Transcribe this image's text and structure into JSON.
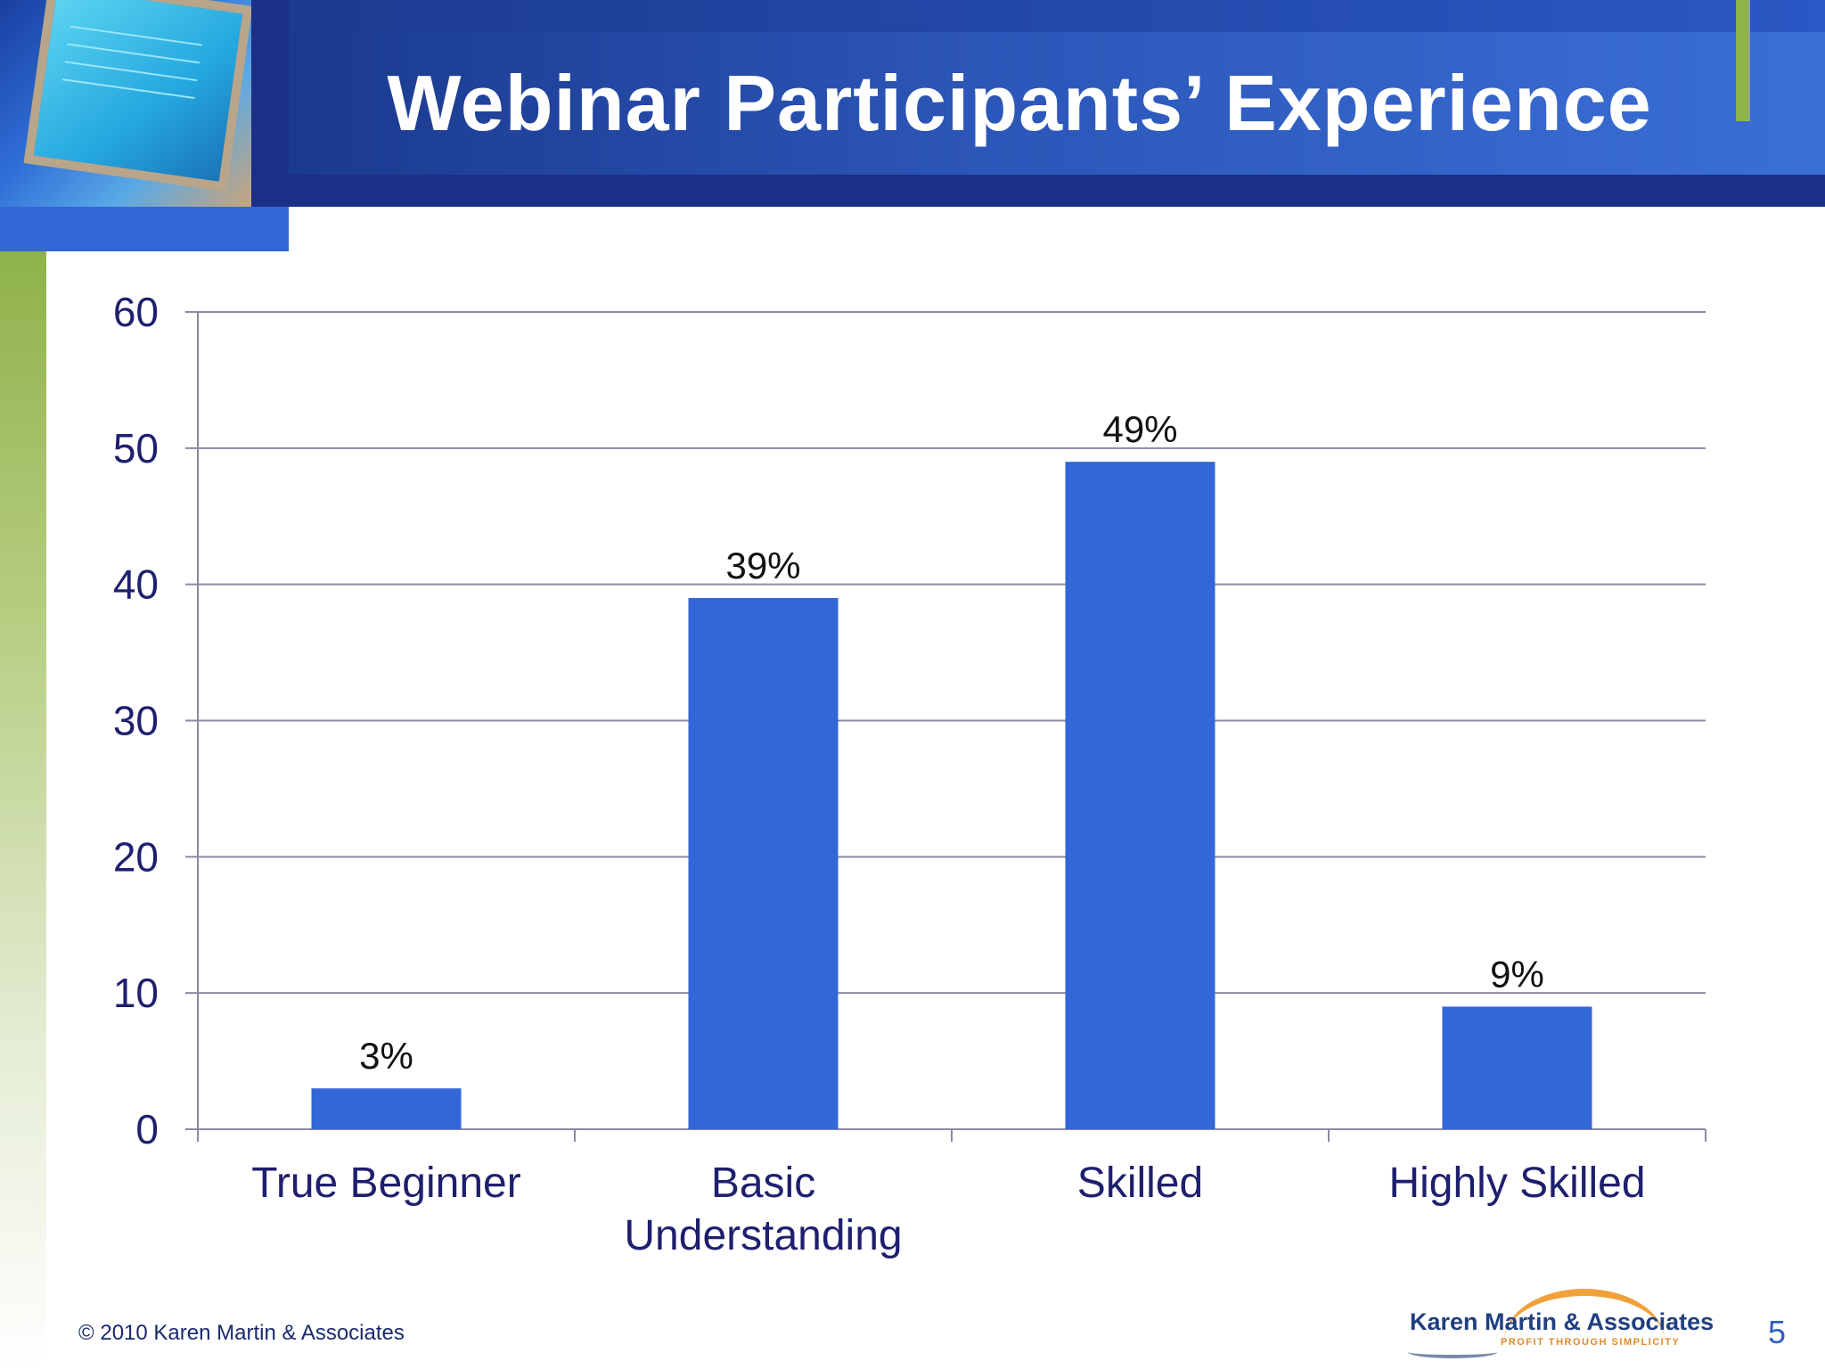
{
  "slide": {
    "title": "Webinar Participants’ Experience",
    "footer_text": "© 2010 Karen Martin & Associates",
    "logo_name": "Karen Martin & Associates",
    "logo_tagline": "PROFIT THROUGH SIMPLICITY",
    "page_number": "5",
    "colors": {
      "header_navy": "#1c2f86",
      "header_blue": "#2c56b8",
      "accent_green": "#8fb24a",
      "bar_blue": "#3366d6"
    }
  },
  "chart_data": {
    "type": "bar",
    "title": "",
    "xlabel": "",
    "ylabel": "",
    "categories": [
      [
        "True Beginner"
      ],
      [
        "Basic",
        "Understanding"
      ],
      [
        "Skilled"
      ],
      [
        "Highly Skilled"
      ]
    ],
    "values": [
      3,
      39,
      49,
      9
    ],
    "data_labels": [
      "3%",
      "39%",
      "49%",
      "9%"
    ],
    "ylim": [
      0,
      60
    ],
    "yticks": [
      0,
      10,
      20,
      30,
      40,
      50,
      60
    ],
    "ytick_labels": [
      "0",
      "10",
      "20",
      "30",
      "40",
      "50",
      "60"
    ],
    "grid": true,
    "legend": "none",
    "bar_color": "#3366d6"
  }
}
